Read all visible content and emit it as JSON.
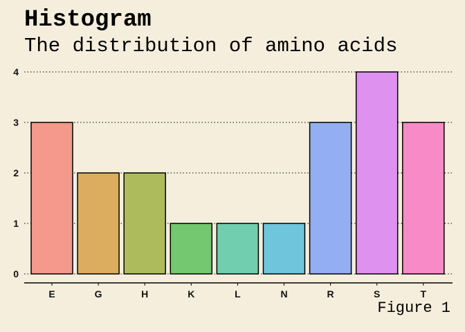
{
  "chart_data": {
    "type": "bar",
    "title": "Histogram",
    "subtitle": "The distribution of amino acids",
    "caption": "Figure 1",
    "xlabel": "",
    "ylabel": "",
    "categories": [
      "E",
      "G",
      "H",
      "K",
      "L",
      "N",
      "R",
      "S",
      "T"
    ],
    "values": [
      3,
      2,
      2,
      1,
      1,
      1,
      3,
      4,
      3
    ],
    "colors": [
      "#F4998C",
      "#DCAD5E",
      "#ADBB5D",
      "#74C870",
      "#71CFAF",
      "#6FC5DC",
      "#93AEF2",
      "#DE91EE",
      "#F98AC8"
    ],
    "ylim": [
      0,
      4
    ],
    "yticks": [
      0,
      1,
      2,
      3,
      4
    ],
    "grid": "horizontal dotted",
    "legend": "none"
  }
}
